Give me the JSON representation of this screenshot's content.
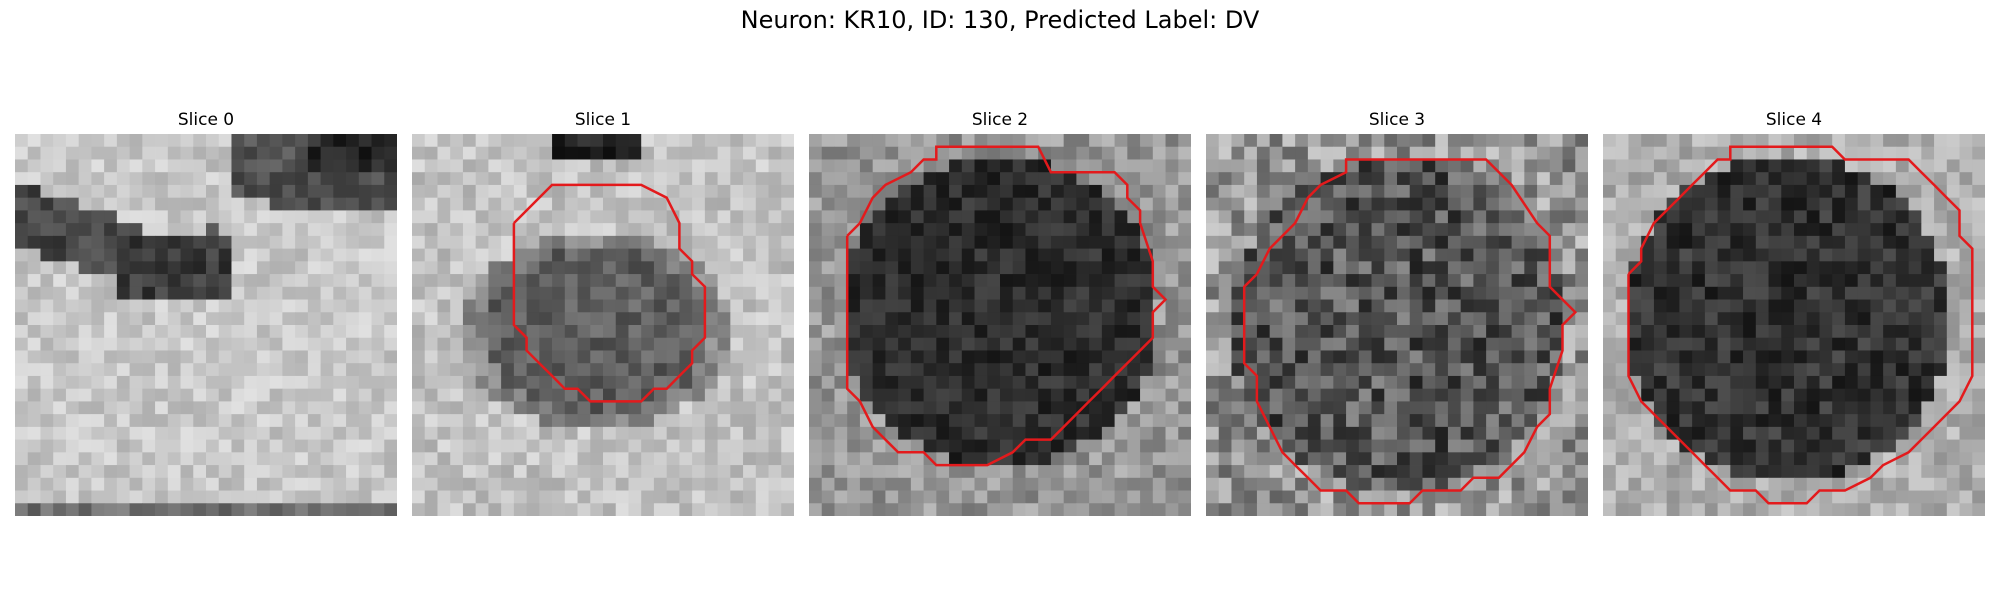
{
  "figure": {
    "title": "Neuron: KR10, ID: 130, Predicted Label: DV",
    "contour_color": "#e31a1c",
    "slices": [
      {
        "title": "Slice 0",
        "has_contour": false
      },
      {
        "title": "Slice 1",
        "has_contour": true
      },
      {
        "title": "Slice 2",
        "has_contour": true
      },
      {
        "title": "Slice 3",
        "has_contour": true
      },
      {
        "title": "Slice 4",
        "has_contour": true
      }
    ]
  }
}
